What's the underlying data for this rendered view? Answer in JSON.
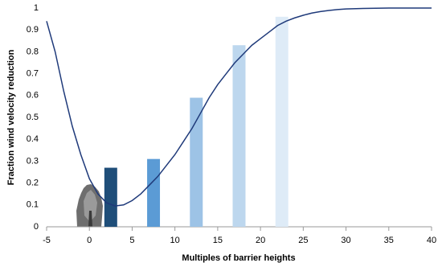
{
  "chart_data": {
    "type": "combo",
    "xlabel": "Multiples of barrier heights",
    "ylabel": "Fraction wind velocity reduction",
    "xlim": [
      -5,
      40
    ],
    "xticks": [
      -5,
      0,
      5,
      10,
      15,
      20,
      25,
      30,
      35,
      40
    ],
    "ylim": [
      0,
      1
    ],
    "yticks": [
      0,
      0.1,
      0.2,
      0.3,
      0.4,
      0.5,
      0.6,
      0.7,
      0.8,
      0.9,
      1
    ],
    "bars": {
      "x": [
        2.5,
        7.5,
        12.5,
        17.5,
        22.5
      ],
      "values": [
        0.27,
        0.31,
        0.59,
        0.83,
        0.96
      ],
      "colors": [
        "#1f4e79",
        "#5b9bd5",
        "#9dc3e6",
        "#bdd7ee",
        "#deebf7"
      ]
    },
    "line": {
      "color": "#1f3a7a",
      "x": [
        -5,
        -4,
        -3,
        -2,
        -1,
        0,
        1,
        2,
        3,
        4,
        5,
        6,
        7,
        8,
        9,
        10,
        11,
        12,
        13,
        14,
        15,
        16,
        17,
        18,
        19,
        20,
        21,
        22,
        23,
        24,
        25,
        26,
        27,
        28,
        29,
        30,
        32,
        35,
        40
      ],
      "values": [
        0.94,
        0.8,
        0.62,
        0.46,
        0.33,
        0.22,
        0.15,
        0.11,
        0.095,
        0.1,
        0.12,
        0.15,
        0.19,
        0.23,
        0.28,
        0.33,
        0.39,
        0.45,
        0.52,
        0.59,
        0.65,
        0.7,
        0.75,
        0.79,
        0.83,
        0.86,
        0.89,
        0.92,
        0.94,
        0.955,
        0.967,
        0.977,
        0.984,
        0.989,
        0.993,
        0.996,
        0.998,
        1,
        1
      ]
    }
  }
}
